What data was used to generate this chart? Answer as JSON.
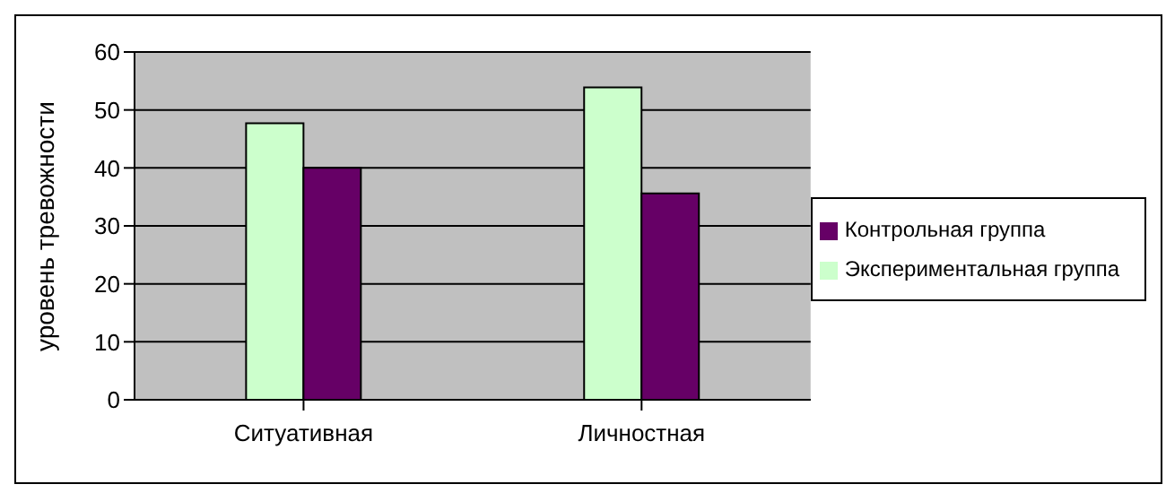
{
  "chart_data": {
    "type": "bar",
    "ylabel": "уровень тревожности",
    "categories": [
      "Ситуативная",
      "Личностная"
    ],
    "series": [
      {
        "name": "Экспериментальная группа",
        "color": "#ccffcc",
        "values": [
          47.7,
          53.9
        ]
      },
      {
        "name": "Контрольная группа",
        "color": "#660066",
        "values": [
          40,
          35.6
        ]
      }
    ],
    "ylim": [
      0,
      60
    ],
    "yticks": [
      0,
      10,
      20,
      30,
      40,
      50,
      60
    ],
    "grid": "y",
    "legend": "right"
  }
}
